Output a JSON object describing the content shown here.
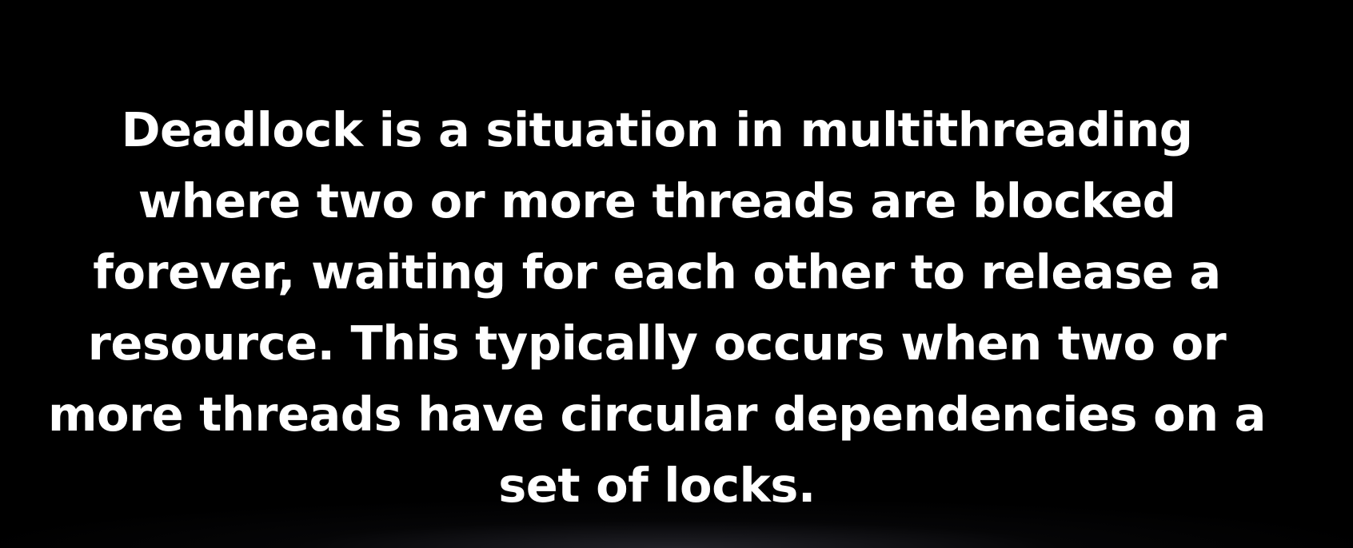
{
  "colors": {
    "background": "#000000",
    "text": "#ffffff"
  },
  "paragraph": {
    "lines": [
      "Deadlock is a situation in multithreading",
      "where two or more threads are blocked",
      "forever, waiting for each other to release a",
      "resource. This typically occurs when two or",
      "more threads have circular dependencies on a",
      "set of locks."
    ]
  }
}
